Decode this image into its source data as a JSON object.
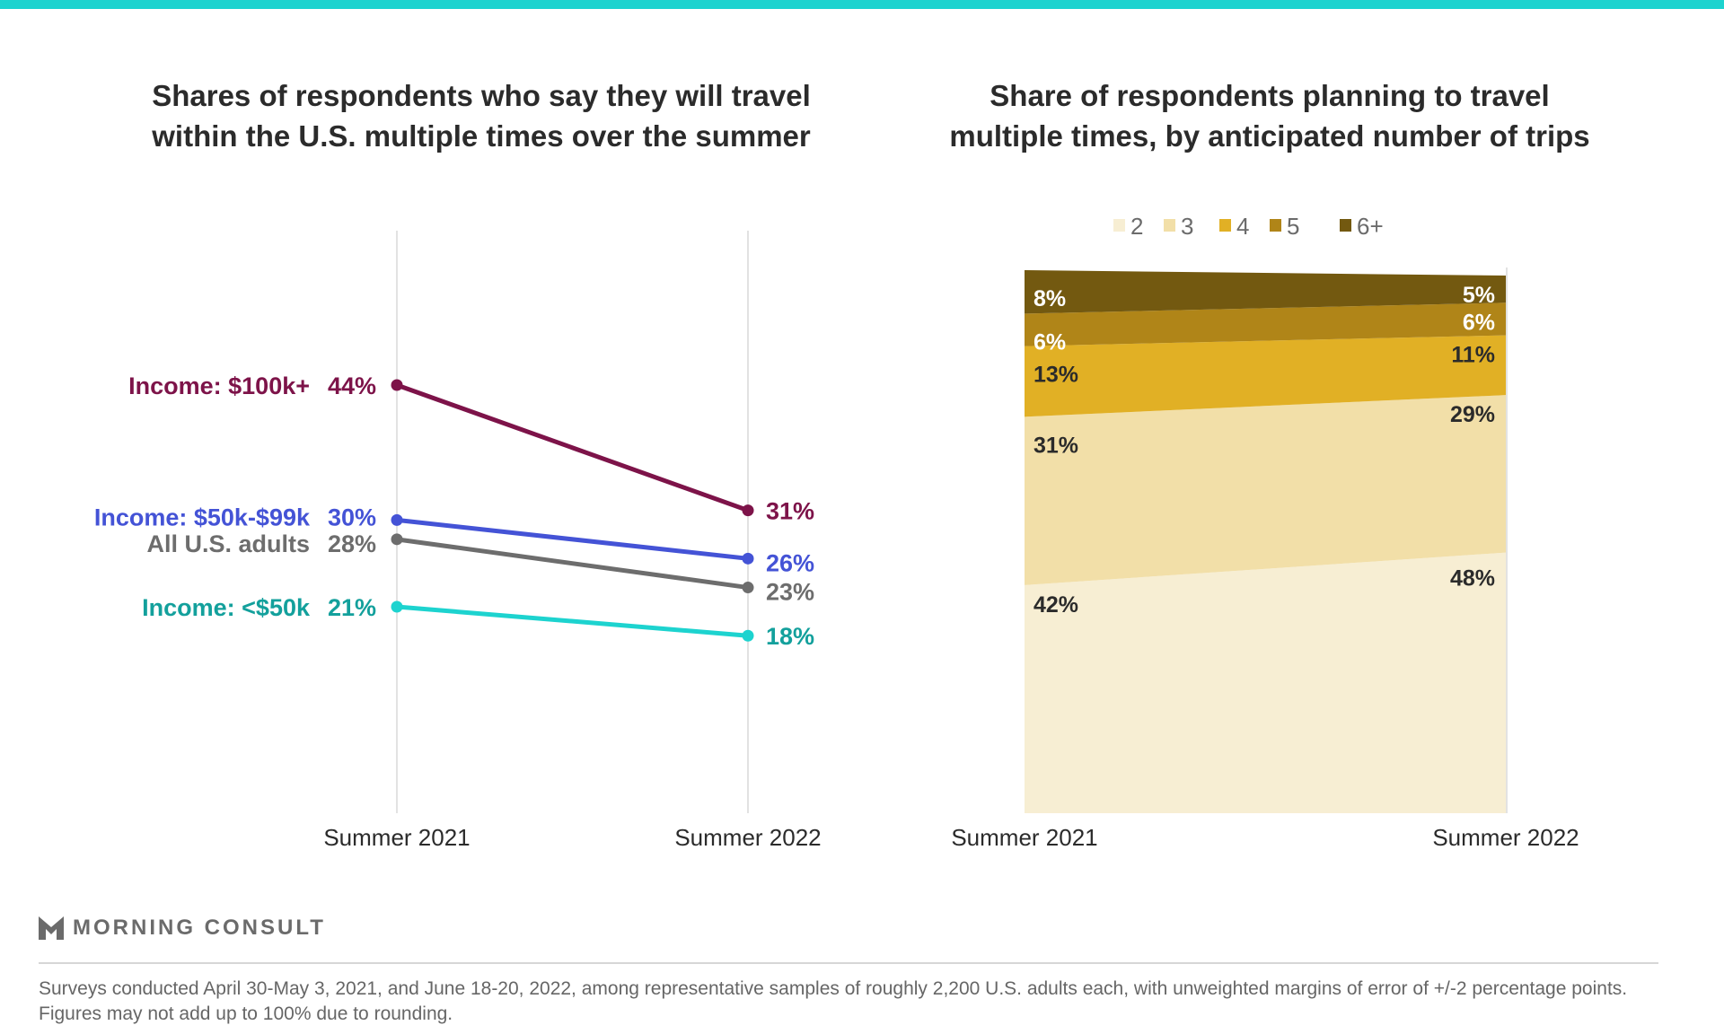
{
  "chart_data": [
    {
      "type": "line",
      "title": "Shares of respondents who say they will travel within the U.S. multiple times over the summer",
      "categories": [
        "Summer 2021",
        "Summer 2022"
      ],
      "series": [
        {
          "name": "Income: $100k+",
          "values": [
            44,
            31
          ],
          "labels": [
            "44%",
            "31%"
          ],
          "color": "#7d1349",
          "label_color": "#7d1349"
        },
        {
          "name": "Income: $50k-$99k",
          "values": [
            30,
            26
          ],
          "labels": [
            "30%",
            "26%"
          ],
          "color": "#4453d6",
          "label_color": "#4453d6"
        },
        {
          "name": "All U.S. adults",
          "values": [
            28,
            23
          ],
          "labels": [
            "28%",
            "23%"
          ],
          "color": "#6d6d6d",
          "label_color": "#6d6d6d"
        },
        {
          "name": "Income: <$50k",
          "values": [
            21,
            18
          ],
          "labels": [
            "21%",
            "18%"
          ],
          "color": "#1dd3cf",
          "label_color": "#13a09c"
        }
      ],
      "grid": false
    },
    {
      "type": "area",
      "stacked": true,
      "title": "Share of respondents planning to travel multiple times, by anticipated number of trips",
      "categories": [
        "Summer 2021",
        "Summer 2022"
      ],
      "legend_position": "top",
      "series": [
        {
          "name": "2",
          "values": [
            42,
            48
          ],
          "labels": [
            "42%",
            "48%"
          ],
          "color": "#f7eed3",
          "label_color": "#2b2b2b"
        },
        {
          "name": "3",
          "values": [
            31,
            29
          ],
          "labels": [
            "31%",
            "29%"
          ],
          "color": "#f2dfa8",
          "label_color": "#2b2b2b"
        },
        {
          "name": "4",
          "values": [
            13,
            11
          ],
          "labels": [
            "13%",
            "11%"
          ],
          "color": "#e1b025",
          "label_color": "#2b2b2b"
        },
        {
          "name": "5",
          "values": [
            6,
            6
          ],
          "labels": [
            "6%",
            "6%"
          ],
          "color": "#b08518",
          "label_color": "#ffffff"
        },
        {
          "name": "6+",
          "values": [
            8,
            5
          ],
          "labels": [
            "8%",
            "5%"
          ],
          "color": "#735910",
          "label_color": "#ffffff"
        }
      ],
      "ylim": [
        0,
        100
      ]
    }
  ],
  "brand": {
    "name": "MORNING CONSULT",
    "accent": "#1dd3cf"
  },
  "footnote": "Surveys conducted April 30-May 3, 2021, and June 18-20, 2022, among representative samples of roughly 2,200 U.S. adults each, with unweighted margins of error of +/-2 percentage points. Figures may not add up to 100% due to rounding."
}
